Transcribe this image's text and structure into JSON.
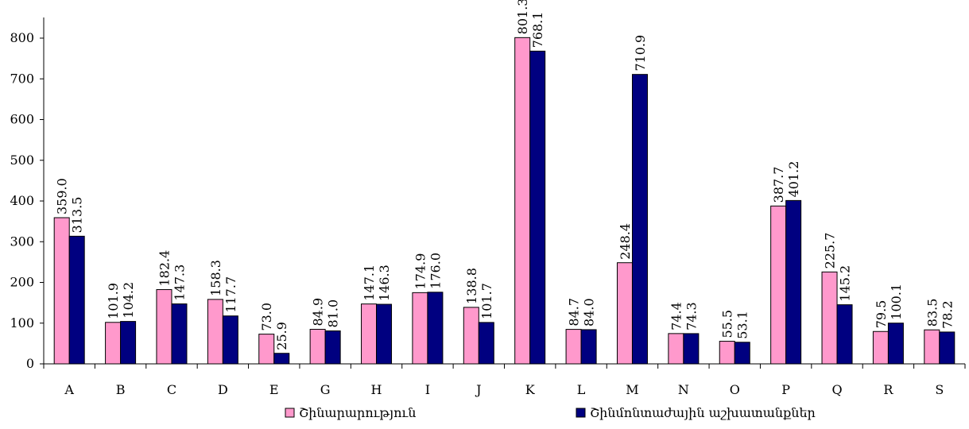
{
  "chart_data": {
    "type": "bar",
    "categories": [
      "A",
      "B",
      "C",
      "D",
      "E",
      "G",
      "H",
      "I",
      "J",
      "K",
      "L",
      "M",
      "N",
      "O",
      "P",
      "Q",
      "R",
      "S"
    ],
    "series": [
      {
        "name": "Շինարարություն",
        "color": "#ff99cc",
        "values": [
          359.0,
          101.9,
          182.4,
          158.3,
          73.0,
          84.9,
          147.1,
          174.9,
          138.8,
          801.3,
          84.7,
          248.4,
          74.4,
          55.5,
          387.7,
          225.7,
          79.5,
          83.5
        ],
        "labels": [
          "359.0",
          "101.9",
          "182.4",
          "158.3",
          "73.0",
          "84.9",
          "147.1",
          "174.9",
          "138.8",
          "801.3",
          "84.7",
          "248.4",
          "74.4",
          "55.5",
          "387.7",
          "225.7",
          "79.5",
          "83.5"
        ]
      },
      {
        "name": "Շինմոնտաժային աշխատանքներ",
        "color": "#000080",
        "values": [
          313.5,
          104.2,
          147.3,
          117.7,
          25.9,
          81.0,
          146.3,
          176.0,
          101.7,
          768.1,
          84.0,
          710.9,
          74.3,
          53.1,
          401.2,
          145.2,
          100.1,
          78.2
        ],
        "labels": [
          "313.5",
          "104.2",
          "147.3",
          "117.7",
          "25.9",
          "81.0",
          "146.3",
          "176.0",
          "101.7",
          "768.1",
          "84.0",
          "710.9",
          "74.3",
          "53.1",
          "401.2",
          "145.2",
          "100.1",
          "78.2"
        ]
      }
    ],
    "ylim": [
      0,
      800
    ],
    "yticks": [
      "0",
      "100",
      "200",
      "300",
      "400",
      "500",
      "600",
      "700",
      "800"
    ],
    "title": "",
    "xlabel": "",
    "ylabel": "",
    "grid": false,
    "legend_position": "bottom"
  }
}
